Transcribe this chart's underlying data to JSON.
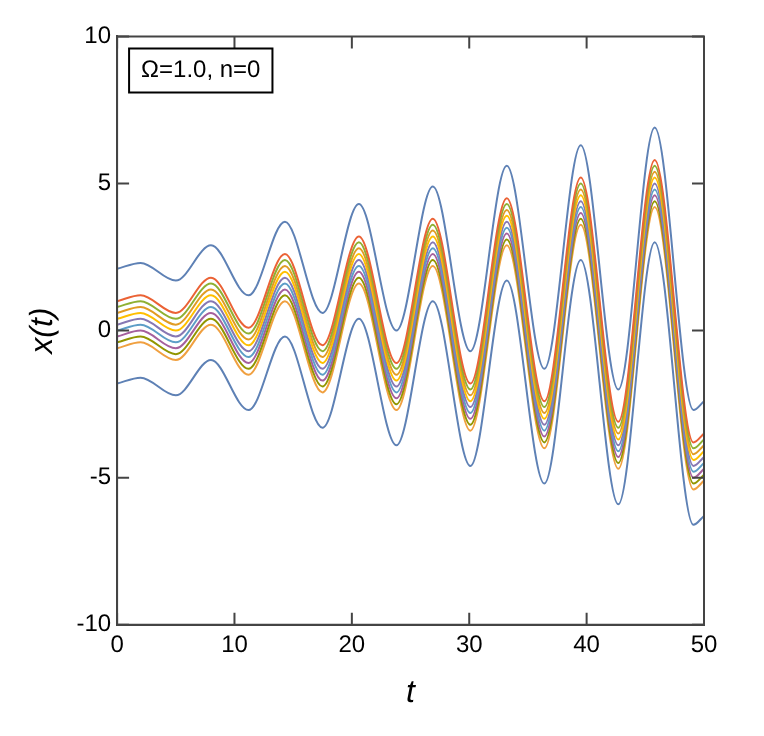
{
  "chart_data": {
    "type": "line",
    "xlabel": "t",
    "ylabel": "x(t)",
    "annotations": [
      "Ω=1.0, n=0"
    ],
    "x": [
      0,
      2,
      5,
      8,
      11.2,
      14.3,
      17.5,
      20.6,
      23.8,
      26.9,
      30.1,
      33.2,
      36.4,
      39.5,
      42.7,
      45.8,
      49.1,
      50
    ],
    "xlim": [
      0,
      50
    ],
    "xticks": [
      0,
      10,
      20,
      30,
      40,
      50
    ],
    "ylim": [
      -10,
      10
    ],
    "yticks": [
      -10,
      -5,
      0,
      5,
      10
    ],
    "grid": false,
    "legend": false,
    "marker": "none",
    "line_style": "solid",
    "series": [
      {
        "color": "#5e81b5",
        "values": [
          2.1,
          2.3,
          1.7,
          2.9,
          1.2,
          3.7,
          0.6,
          4.3,
          0,
          4.9,
          -0.7,
          5.6,
          -1.3,
          6.3,
          -2,
          6.9,
          -2.7,
          -2.4
        ]
      },
      {
        "color": "#eb6235",
        "values": [
          1,
          1.2,
          0.6,
          1.8,
          0.1,
          2.6,
          -0.5,
          3.2,
          -1.1,
          3.8,
          -1.8,
          4.5,
          -2.4,
          5.2,
          -3.1,
          5.8,
          -3.8,
          -3.5
        ]
      },
      {
        "color": "#8fb032",
        "values": [
          0.8,
          1,
          0.4,
          1.6,
          -0.1,
          2.4,
          -0.7,
          3,
          -1.3,
          3.6,
          -2,
          4.3,
          -2.6,
          5,
          -3.3,
          5.6,
          -4,
          -3.7
        ]
      },
      {
        "color": "#e19c24",
        "values": [
          0.6,
          0.8,
          0.2,
          1.4,
          -0.3,
          2.2,
          -0.9,
          2.8,
          -1.5,
          3.4,
          -2.2,
          4.1,
          -2.8,
          4.8,
          -3.5,
          5.4,
          -4.2,
          -3.9
        ]
      },
      {
        "color": "#ffbf00",
        "values": [
          0.4,
          0.6,
          0,
          1.2,
          -0.5,
          2,
          -1.1,
          2.6,
          -1.7,
          3.2,
          -2.4,
          3.9,
          -3,
          4.6,
          -3.7,
          5.2,
          -4.4,
          -4.1
        ]
      },
      {
        "color": "#8778b3",
        "values": [
          0.2,
          0.4,
          -0.2,
          1,
          -0.7,
          1.8,
          -1.3,
          2.4,
          -1.9,
          3,
          -2.6,
          3.7,
          -3.2,
          4.4,
          -3.9,
          5,
          -4.6,
          -4.3
        ]
      },
      {
        "color": "#5d9ec7",
        "values": [
          0,
          0.2,
          -0.4,
          0.8,
          -0.9,
          1.6,
          -1.5,
          2.2,
          -2.1,
          2.8,
          -2.8,
          3.5,
          -3.4,
          4.2,
          -4.1,
          4.8,
          -4.8,
          -4.5
        ]
      },
      {
        "color": "#a5609d",
        "values": [
          -0.2,
          0,
          -0.6,
          0.6,
          -1.1,
          1.4,
          -1.7,
          2,
          -2.3,
          2.6,
          -3,
          3.3,
          -3.6,
          4,
          -4.3,
          4.6,
          -5,
          -4.7
        ]
      },
      {
        "color": "#929600",
        "values": [
          -0.4,
          -0.2,
          -0.8,
          0.4,
          -1.3,
          1.2,
          -1.9,
          1.8,
          -2.5,
          2.4,
          -3.2,
          3.1,
          -3.8,
          3.8,
          -4.5,
          4.4,
          -5.2,
          -4.9
        ]
      },
      {
        "color": "#f0a040",
        "values": [
          -0.6,
          -0.4,
          -1,
          0.2,
          -1.5,
          1,
          -2.1,
          1.6,
          -2.7,
          2.2,
          -3.4,
          2.9,
          -4,
          3.6,
          -4.7,
          4.2,
          -5.4,
          -5.1
        ]
      },
      {
        "color": "#5e81b5",
        "values": [
          -1.8,
          -1.6,
          -2.2,
          -1,
          -2.7,
          -0.2,
          -3.3,
          0.4,
          -3.9,
          1,
          -4.6,
          1.7,
          -5.2,
          2.4,
          -5.9,
          3,
          -6.6,
          -6.3
        ]
      }
    ]
  }
}
